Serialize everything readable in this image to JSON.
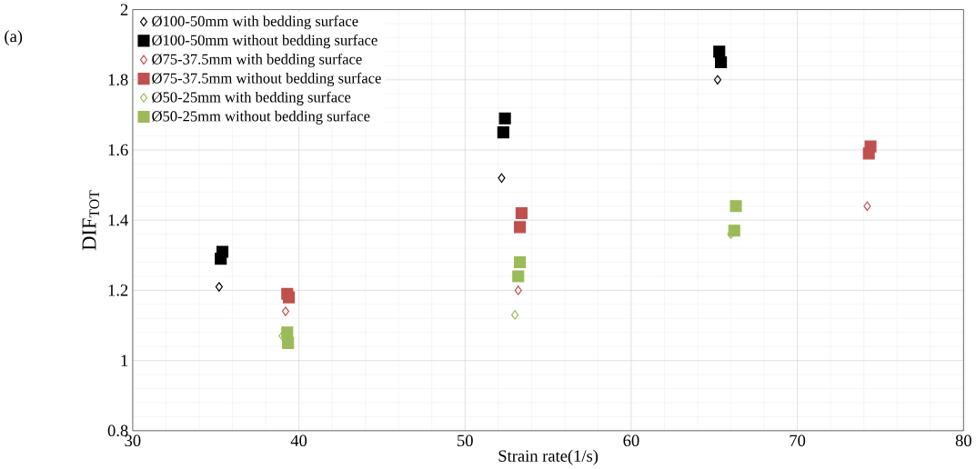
{
  "chart_data": {
    "type": "scatter",
    "xlabel": "Strain rate(1/s)",
    "ylabel": "DIF$_{TOT}$",
    "annotations": [
      "(a)"
    ],
    "xlim": [
      30,
      80
    ],
    "ylim": [
      0.8,
      2
    ],
    "xticks": [
      30,
      40,
      50,
      60,
      70,
      80
    ],
    "yticks": [
      0.8,
      1,
      1.2,
      1.4,
      1.6,
      1.8,
      2
    ],
    "grid": true,
    "legend": "top left",
    "series": [
      {
        "name": "Ø100-50mm with bedding surface",
        "color": "#000000",
        "marker": "diamond",
        "x": [
          35.2,
          52.2,
          65.2
        ],
        "values": [
          1.21,
          1.52,
          1.8
        ]
      },
      {
        "name": "Ø100-50mm without bedding surface",
        "color": "#000000",
        "marker": "square",
        "x": [
          35.3,
          35.4,
          52.3,
          52.4,
          65.3,
          65.4
        ],
        "values": [
          1.29,
          1.31,
          1.65,
          1.69,
          1.88,
          1.85
        ]
      },
      {
        "name": "Ø75-37.5mm with bedding surface",
        "color": "#c0504d",
        "marker": "diamond",
        "x": [
          39.2,
          53.2,
          74.2
        ],
        "values": [
          1.14,
          1.2,
          1.44
        ]
      },
      {
        "name": "Ø75-37.5mm without bedding surface",
        "color": "#c0504d",
        "marker": "square",
        "x": [
          39.3,
          39.4,
          53.3,
          53.4,
          74.3,
          74.4
        ],
        "values": [
          1.19,
          1.18,
          1.38,
          1.42,
          1.59,
          1.61
        ]
      },
      {
        "name": "Ø50-25mm with bedding surface",
        "color": "#9bbb59",
        "marker": "diamond",
        "x": [
          39.0,
          53.0,
          66.0
        ],
        "values": [
          1.07,
          1.13,
          1.36
        ]
      },
      {
        "name": "Ø50-25mm without bedding surface",
        "color": "#9bbb59",
        "marker": "square",
        "x": [
          39.3,
          39.35,
          53.2,
          53.3,
          66.2,
          66.3
        ],
        "values": [
          1.08,
          1.05,
          1.24,
          1.28,
          1.37,
          1.44
        ]
      }
    ]
  }
}
